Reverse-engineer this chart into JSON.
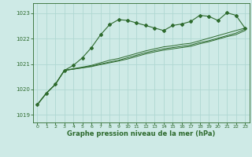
{
  "title": "Graphe pression niveau de la mer (hPa)",
  "bg_color": "#ceeae6",
  "line_color": "#2d6a2d",
  "grid_color": "#b0d8d2",
  "xlim": [
    -0.5,
    23.5
  ],
  "ylim": [
    1018.7,
    1023.4
  ],
  "yticks": [
    1019,
    1020,
    1021,
    1022,
    1023
  ],
  "xticks": [
    0,
    1,
    2,
    3,
    4,
    5,
    6,
    7,
    8,
    9,
    10,
    11,
    12,
    13,
    14,
    15,
    16,
    17,
    18,
    19,
    20,
    21,
    22,
    23
  ],
  "series": [
    [
      1019.4,
      1019.85,
      1020.2,
      1020.75,
      1020.95,
      1021.25,
      1021.65,
      1022.15,
      1022.55,
      1022.75,
      1022.72,
      1022.62,
      1022.52,
      1022.42,
      1022.32,
      1022.52,
      1022.58,
      1022.68,
      1022.92,
      1022.88,
      1022.72,
      1023.02,
      1022.92,
      1022.42
    ],
    [
      1019.4,
      1019.85,
      1020.2,
      1020.75,
      1020.82,
      1020.88,
      1020.95,
      1021.05,
      1021.15,
      1021.22,
      1021.32,
      1021.42,
      1021.52,
      1021.6,
      1021.68,
      1021.72,
      1021.78,
      1021.82,
      1021.92,
      1022.02,
      1022.12,
      1022.22,
      1022.32,
      1022.42
    ],
    [
      1019.4,
      1019.85,
      1020.2,
      1020.75,
      1020.8,
      1020.86,
      1020.92,
      1021.0,
      1021.08,
      1021.15,
      1021.25,
      1021.35,
      1021.45,
      1021.53,
      1021.6,
      1021.65,
      1021.7,
      1021.75,
      1021.85,
      1021.92,
      1022.02,
      1022.12,
      1022.22,
      1022.38
    ],
    [
      1019.4,
      1019.85,
      1020.2,
      1020.75,
      1020.8,
      1020.85,
      1020.9,
      1020.98,
      1021.05,
      1021.12,
      1021.2,
      1021.3,
      1021.4,
      1021.48,
      1021.55,
      1021.6,
      1021.65,
      1021.7,
      1021.8,
      1021.88,
      1021.98,
      1022.08,
      1022.16,
      1022.32
    ]
  ]
}
